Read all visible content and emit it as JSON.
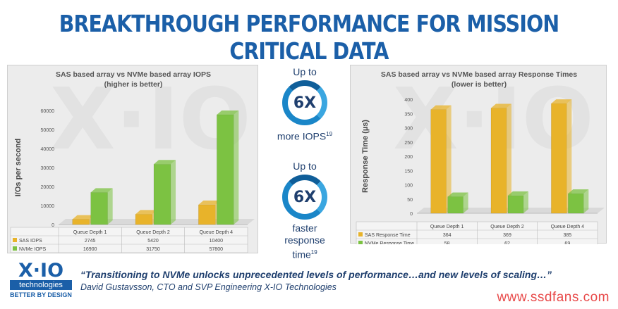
{
  "headline": "BREAKTHROUGH PERFORMANCE FOR MISSION CRITICAL DATA",
  "middle": {
    "top": {
      "upto": "Up to",
      "badge": "6X",
      "caption": "more IOPS",
      "sup": "19"
    },
    "bottom": {
      "upto": "Up to",
      "badge": "6X",
      "caption_lines": [
        "faster",
        "response",
        "time"
      ],
      "sup": "19"
    }
  },
  "logo": {
    "mark": "X·IO",
    "name": "technologies",
    "tagline": "BETTER BY DESIGN"
  },
  "quote": "“Transitioning to NVMe unlocks unprecedented levels of performance…and new levels of scaling…”",
  "attribution": "David Gustavsson, CTO and SVP Engineering X-IO Technologies",
  "site": "www.ssdfans.com",
  "colors": {
    "sas": "#e8b32a",
    "nvme": "#7cc242",
    "brand": "#1b5fa8",
    "site": "#e84a4a"
  },
  "chart_data": [
    {
      "type": "bar",
      "title": "SAS based array vs NVMe based array IOPS",
      "subtitle": "(higher is better)",
      "ylabel": "I/Os per second",
      "xlabel": "",
      "categories": [
        "Queue Depth 1",
        "Queue Depth 2",
        "Queue Depth 4"
      ],
      "series": [
        {
          "name": "SAS IOPS",
          "values": [
            2745,
            5420,
            10400
          ],
          "color": "#e8b32a"
        },
        {
          "name": "NVMe IOPS",
          "values": [
            16900,
            31750,
            57800
          ],
          "color": "#7cc242"
        }
      ],
      "ylim": [
        0,
        60000
      ],
      "yticks": [
        0,
        10000,
        20000,
        30000,
        40000,
        50000,
        60000
      ],
      "legend": "table-below",
      "grid": false
    },
    {
      "type": "bar",
      "title": "SAS based array vs NVMe based array Response Times",
      "subtitle": "(lower is better)",
      "ylabel": "Response Time (µs)",
      "xlabel": "",
      "categories": [
        "Queue Depth 1",
        "Queue Depth 2",
        "Queue Depth 4"
      ],
      "series": [
        {
          "name": "SAS Response Time",
          "values": [
            364,
            369,
            385
          ],
          "color": "#e8b32a"
        },
        {
          "name": "NVMe Response Time",
          "values": [
            58,
            62,
            69
          ],
          "color": "#7cc242"
        }
      ],
      "ylim": [
        0,
        400
      ],
      "yticks": [
        0,
        50,
        100,
        150,
        200,
        250,
        300,
        350,
        400
      ],
      "legend": "table-below",
      "grid": false
    }
  ]
}
